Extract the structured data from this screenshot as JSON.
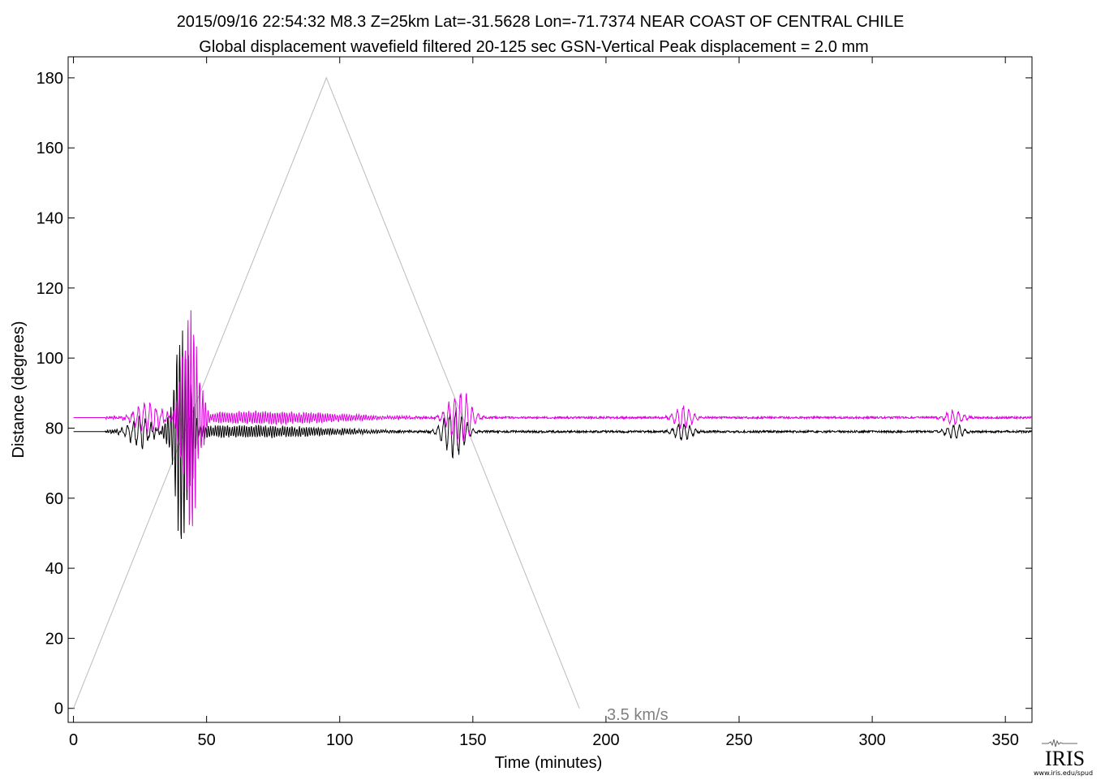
{
  "title_line1": "2015/09/16  22:54:32  M8.3  Z=25km  Lat=-31.5628 Lon=-71.7374  NEAR COAST OF CENTRAL CHILE",
  "title_line2": "Global displacement wavefield    filtered 20-125 sec    GSN-Vertical    Peak displacement = 2.0 mm",
  "speed_label": "3.5 km/s",
  "logo": {
    "name": "IRIS",
    "url": "www.iris.edu/spud"
  },
  "colors": {
    "trace_black": "#000000",
    "trace_magenta": "#e000e0",
    "reference_line": "#bbbbbb",
    "speed_label": "#808080"
  },
  "chart_data": {
    "type": "line",
    "xlabel": "Time (minutes)",
    "ylabel": "Distance (degrees)",
    "xlim": [
      -2,
      360
    ],
    "ylim": [
      -4,
      186
    ],
    "x_ticks": [
      0,
      50,
      100,
      150,
      200,
      250,
      300,
      350
    ],
    "y_ticks": [
      0,
      20,
      40,
      60,
      80,
      100,
      120,
      140,
      160,
      180
    ],
    "grid": false,
    "reference_line": {
      "name": "3.5 km/s",
      "x": [
        0,
        95,
        190
      ],
      "y": [
        0,
        180,
        0
      ]
    },
    "series": [
      {
        "color": "black",
        "baseline": 79,
        "start_minute": 0,
        "wave_packets": [
          {
            "center": 25,
            "width": 5,
            "amplitude": 5
          },
          {
            "center": 41,
            "width": 4,
            "amplitude": 34
          },
          {
            "center": 65,
            "width": 40,
            "amplitude": 2
          },
          {
            "center": 143,
            "width": 5,
            "amplitude": 8
          },
          {
            "center": 229,
            "width": 4,
            "amplitude": 3
          },
          {
            "center": 331,
            "width": 4,
            "amplitude": 2.5
          }
        ]
      },
      {
        "color": "magenta",
        "baseline": 83,
        "start_minute": 0,
        "wave_packets": [
          {
            "center": 28,
            "width": 6,
            "amplitude": 5
          },
          {
            "center": 44,
            "width": 4,
            "amplitude": 34
          },
          {
            "center": 70,
            "width": 40,
            "amplitude": 2
          },
          {
            "center": 145,
            "width": 5,
            "amplitude": 9
          },
          {
            "center": 229,
            "width": 4,
            "amplitude": 4
          },
          {
            "center": 331,
            "width": 4,
            "amplitude": 2.5
          }
        ]
      }
    ]
  }
}
